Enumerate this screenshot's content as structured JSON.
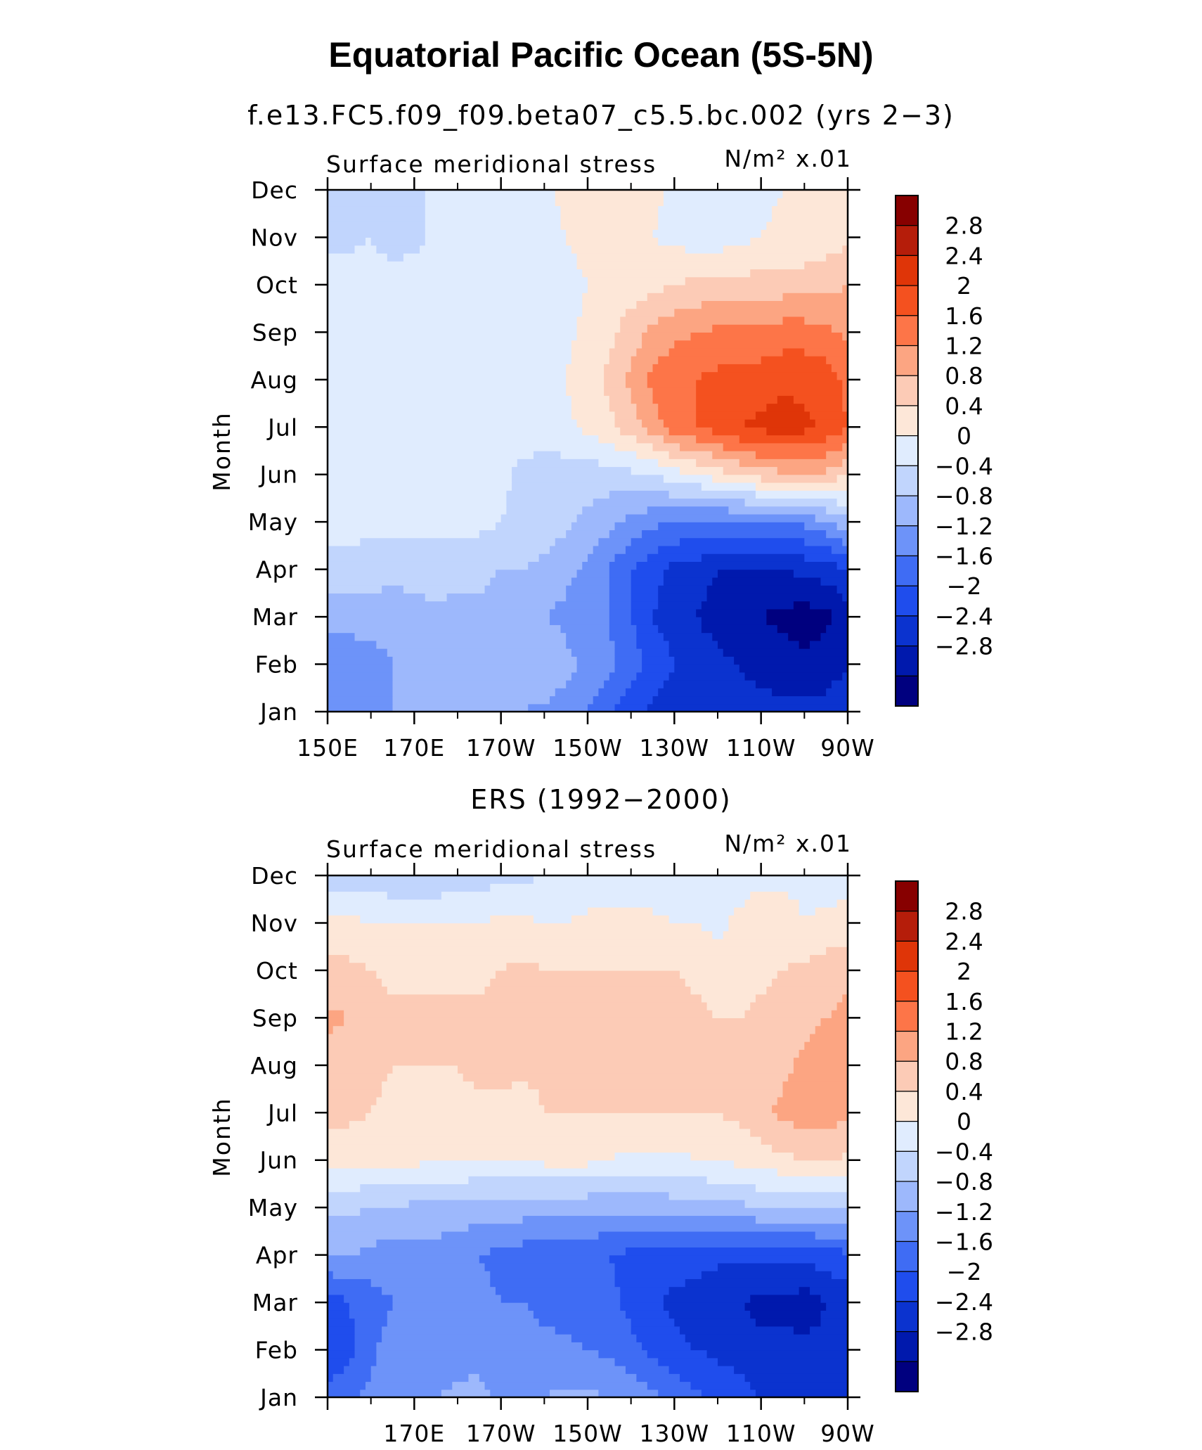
{
  "figure_title": "Equatorial Pacific Ocean (5S-5N)",
  "chart_data": [
    {
      "type": "heatmap",
      "title": "f.e13.FC5.f09_f09.beta07_c5.5.bc.002 (yrs 2−3)",
      "left_string": "Surface meridional stress",
      "units": "N/m² x.01",
      "xlabel": "",
      "ylabel": "Month",
      "x_tick_labels": [
        "150E",
        "170E",
        "170W",
        "150W",
        "130W",
        "110W",
        "90W"
      ],
      "y_tick_labels": [
        "Jan",
        "Feb",
        "Mar",
        "Apr",
        "May",
        "Jun",
        "Jul",
        "Aug",
        "Sep",
        "Oct",
        "Nov",
        "Dec"
      ],
      "x": [
        150,
        155,
        160,
        165,
        170,
        175,
        180,
        185,
        190,
        195,
        200,
        205,
        210,
        215,
        220,
        225,
        230,
        235,
        240,
        245,
        250,
        255,
        260,
        265,
        270
      ],
      "xlim": [
        150,
        270
      ],
      "levels": [
        -2.8,
        -2.4,
        -2.0,
        -1.6,
        -1.2,
        -0.8,
        -0.4,
        0,
        0.4,
        0.8,
        1.2,
        1.6,
        2.0,
        2.4,
        2.8
      ],
      "level_labels": [
        "2.8",
        "2.4",
        "2",
        "1.6",
        "1.2",
        "0.8",
        "0.4",
        "0",
        "−0.4",
        "−0.8",
        "−1.2",
        "−1.6",
        "−2",
        "−2.4",
        "−2.8"
      ],
      "z": [
        [
          -1.0,
          -1.0,
          -0.9,
          -0.8,
          -0.6,
          -0.6,
          -0.6,
          -0.7,
          -0.8,
          -0.8,
          -0.9,
          -1.0,
          -1.2,
          -1.5,
          -1.9,
          -2.1,
          -2.2,
          -2.3,
          -2.3,
          -2.3,
          -2.3,
          -2.3,
          -2.3,
          -2.3,
          -2.1
        ],
        [
          -1.1,
          -1.1,
          -1.0,
          -0.8,
          -0.7,
          -0.7,
          -0.7,
          -0.6,
          -0.7,
          -0.6,
          -0.4,
          -0.7,
          -0.9,
          -1.1,
          -1.4,
          -1.7,
          -2.0,
          -2.1,
          -2.3,
          -2.4,
          -2.5,
          -2.6,
          -2.7,
          -2.6,
          -2.4
        ],
        [
          -0.6,
          -0.6,
          -0.6,
          -0.6,
          -0.6,
          -0.5,
          -0.5,
          -0.5,
          -0.6,
          -0.7,
          -0.8,
          -0.9,
          -1.0,
          -1.2,
          -1.6,
          -2.0,
          -2.2,
          -2.4,
          -2.6,
          -2.7,
          -2.8,
          -2.9,
          -3.0,
          -2.9,
          -2.6
        ],
        [
          -0.2,
          -0.2,
          -0.2,
          -0.3,
          -0.2,
          -0.2,
          -0.3,
          -0.3,
          -0.4,
          -0.4,
          -0.5,
          -0.7,
          -0.9,
          -1.2,
          -1.6,
          -1.9,
          -2.1,
          -2.2,
          -2.4,
          -2.4,
          -2.4,
          -2.4,
          -2.3,
          -2.2,
          -2.0
        ],
        [
          0.2,
          0.2,
          0.1,
          0.1,
          0.1,
          0.1,
          0.1,
          0.1,
          0.0,
          -0.1,
          -0.2,
          -0.3,
          -0.5,
          -0.7,
          -0.9,
          -1.1,
          -1.2,
          -1.3,
          -1.3,
          -1.3,
          -1.3,
          -1.2,
          -1.1,
          -0.9,
          -0.5
        ],
        [
          0.2,
          0.2,
          0.2,
          0.2,
          0.2,
          0.2,
          0.2,
          0.2,
          0.1,
          -0.1,
          -0.2,
          -0.2,
          -0.2,
          -0.2,
          -0.1,
          0.0,
          0.2,
          0.4,
          0.6,
          0.8,
          1.0,
          1.1,
          1.2,
          1.1,
          0.8
        ],
        [
          0.4,
          0.3,
          0.2,
          0.2,
          0.2,
          0.2,
          0.2,
          0.2,
          0.2,
          0.2,
          0.2,
          0.3,
          0.5,
          0.7,
          1.0,
          1.4,
          1.8,
          2.0,
          2.2,
          2.4,
          2.5,
          2.6,
          2.5,
          2.3,
          2.0
        ],
        [
          0.4,
          0.3,
          0.2,
          0.2,
          0.2,
          0.2,
          0.2,
          0.2,
          0.2,
          0.2,
          0.2,
          0.4,
          0.6,
          0.9,
          1.3,
          1.7,
          1.9,
          2.0,
          2.1,
          2.1,
          2.2,
          2.3,
          2.3,
          2.2,
          1.9
        ],
        [
          0.4,
          0.3,
          0.2,
          0.2,
          0.2,
          0.2,
          0.2,
          0.2,
          0.2,
          0.2,
          0.2,
          0.3,
          0.5,
          0.7,
          1.0,
          1.3,
          1.5,
          1.6,
          1.7,
          1.7,
          1.7,
          1.8,
          1.8,
          1.7,
          1.5
        ],
        [
          0.2,
          0.2,
          0.2,
          0.2,
          0.2,
          0.2,
          0.2,
          0.2,
          0.2,
          0.2,
          0.2,
          0.3,
          0.4,
          0.5,
          0.6,
          0.7,
          0.8,
          0.9,
          0.9,
          0.9,
          1.0,
          1.0,
          1.0,
          1.1,
          1.2
        ],
        [
          -0.1,
          -0.1,
          0.0,
          -0.2,
          -0.1,
          0.1,
          0.2,
          0.2,
          0.2,
          0.2,
          0.3,
          0.4,
          0.5,
          0.5,
          0.5,
          0.4,
          0.3,
          0.2,
          0.2,
          0.3,
          0.4,
          0.5,
          0.5,
          0.6,
          0.7
        ],
        [
          -0.3,
          -0.2,
          -0.2,
          -0.1,
          -0.1,
          0.1,
          0.2,
          0.2,
          0.2,
          0.2,
          0.3,
          0.5,
          0.6,
          0.6,
          0.6,
          0.5,
          0.3,
          0.2,
          0.2,
          0.2,
          0.3,
          0.4,
          0.5,
          0.6,
          0.8
        ]
      ]
    },
    {
      "type": "heatmap",
      "title": "ERS (1992−2000)",
      "left_string": "Surface meridional stress",
      "units": "N/m² x.01",
      "xlabel": "",
      "ylabel": "Month",
      "x_tick_labels": [
        "",
        "170E",
        "170W",
        "150W",
        "130W",
        "110W",
        "90W"
      ],
      "y_tick_labels": [
        "Jan",
        "Feb",
        "Mar",
        "Apr",
        "May",
        "Jun",
        "Jul",
        "Aug",
        "Sep",
        "Oct",
        "Nov",
        "Dec"
      ],
      "x": [
        150,
        155,
        160,
        165,
        170,
        175,
        180,
        185,
        190,
        195,
        200,
        205,
        210,
        215,
        220,
        225,
        230,
        235,
        240,
        245,
        250,
        255,
        260,
        265,
        270
      ],
      "xlim": [
        150,
        270
      ],
      "levels": [
        -2.8,
        -2.4,
        -2.0,
        -1.6,
        -1.2,
        -0.8,
        -0.4,
        0,
        0.4,
        0.8,
        1.2,
        1.6,
        2.0,
        2.4,
        2.8
      ],
      "level_labels": [
        "2.8",
        "2.4",
        "2",
        "1.6",
        "1.2",
        "0.8",
        "0.4",
        "0",
        "−0.4",
        "−0.8",
        "−1.2",
        "−1.6",
        "−2",
        "−2.4",
        "−2.8"
      ],
      "z": [
        [
          -1.5,
          -1.3,
          -1.1,
          -0.9,
          -0.8,
          -0.8,
          -0.7,
          -0.7,
          -0.9,
          -0.8,
          -0.8,
          -0.7,
          -0.7,
          -0.8,
          -0.9,
          -1.1,
          -1.3,
          -1.5,
          -1.7,
          -1.8,
          -2.0,
          -2.0,
          -2.1,
          -2.1,
          -2.0
        ],
        [
          -1.9,
          -1.7,
          -1.3,
          -1.0,
          -1.0,
          -1.1,
          -1.0,
          -0.9,
          -1.0,
          -1.0,
          -1.1,
          -1.1,
          -1.2,
          -1.3,
          -1.5,
          -1.7,
          -1.9,
          -2.0,
          -2.1,
          -2.2,
          -2.3,
          -2.3,
          -2.3,
          -2.3,
          -2.2
        ],
        [
          -1.8,
          -1.6,
          -1.4,
          -1.2,
          -1.1,
          -1.1,
          -1.1,
          -1.1,
          -1.2,
          -1.2,
          -1.3,
          -1.4,
          -1.4,
          -1.5,
          -1.7,
          -1.9,
          -2.1,
          -2.2,
          -2.3,
          -2.4,
          -2.5,
          -2.5,
          -2.6,
          -2.4,
          -2.2
        ],
        [
          -0.8,
          -0.8,
          -0.9,
          -1.0,
          -1.0,
          -1.0,
          -1.1,
          -1.2,
          -1.3,
          -1.4,
          -1.5,
          -1.5,
          -1.5,
          -1.6,
          -1.7,
          -1.8,
          -1.8,
          -1.8,
          -1.9,
          -1.9,
          -1.9,
          -1.9,
          -1.9,
          -1.8,
          -1.7
        ],
        [
          -0.3,
          -0.3,
          -0.4,
          -0.4,
          -0.5,
          -0.5,
          -0.5,
          -0.6,
          -0.6,
          -0.6,
          -0.7,
          -0.7,
          -0.7,
          -0.7,
          -0.7,
          -0.7,
          -0.6,
          -0.6,
          -0.5,
          -0.5,
          -0.4,
          -0.4,
          -0.3,
          -0.3,
          -0.3
        ],
        [
          0.5,
          0.5,
          0.5,
          0.5,
          0.5,
          0.4,
          0.4,
          0.4,
          0.4,
          0.4,
          0.5,
          0.5,
          0.5,
          0.4,
          0.3,
          0.3,
          0.3,
          0.4,
          0.4,
          0.5,
          0.6,
          0.7,
          0.8,
          0.9,
          0.7
        ],
        [
          0.9,
          0.9,
          0.8,
          0.7,
          0.7,
          0.7,
          0.7,
          0.7,
          0.7,
          0.6,
          0.8,
          0.8,
          0.8,
          0.8,
          0.8,
          0.8,
          0.8,
          0.8,
          0.8,
          0.9,
          1.1,
          1.3,
          1.4,
          1.4,
          1.3
        ],
        [
          1.0,
          1.0,
          0.9,
          0.8,
          0.8,
          0.8,
          0.8,
          0.9,
          0.9,
          0.9,
          0.9,
          0.9,
          0.9,
          1.0,
          1.0,
          1.0,
          1.0,
          1.0,
          1.0,
          1.0,
          1.0,
          1.1,
          1.3,
          1.4,
          1.3
        ],
        [
          1.3,
          1.2,
          1.0,
          0.9,
          0.9,
          0.9,
          0.9,
          0.9,
          1.0,
          1.1,
          1.0,
          1.0,
          1.0,
          1.0,
          1.0,
          1.0,
          1.0,
          0.9,
          0.8,
          0.8,
          0.9,
          1.0,
          1.1,
          1.2,
          1.3
        ],
        [
          0.9,
          0.9,
          0.8,
          0.7,
          0.7,
          0.7,
          0.7,
          0.7,
          0.8,
          0.9,
          0.8,
          0.8,
          0.8,
          0.8,
          0.8,
          0.8,
          0.8,
          0.7,
          0.6,
          0.6,
          0.7,
          0.8,
          0.9,
          1.0,
          1.1
        ],
        [
          0.5,
          0.5,
          0.4,
          0.4,
          0.4,
          0.4,
          0.4,
          0.4,
          0.5,
          0.5,
          0.4,
          0.4,
          0.5,
          0.5,
          0.5,
          0.5,
          0.4,
          0.4,
          0.3,
          0.5,
          0.7,
          0.6,
          0.4,
          0.5,
          0.6
        ],
        [
          -0.2,
          -0.2,
          -0.2,
          -0.3,
          -0.3,
          -0.3,
          -0.2,
          -0.2,
          -0.1,
          -0.1,
          0.0,
          0.1,
          0.1,
          0.1,
          0.1,
          0.1,
          0.2,
          0.2,
          0.2,
          0.2,
          0.3,
          0.3,
          0.3,
          0.2,
          0.2
        ]
      ]
    }
  ],
  "colors": {
    "fills": [
      "#00007f",
      "#0019ad",
      "#0b33cf",
      "#1f4ded",
      "#3f6cf4",
      "#6d93f9",
      "#9db8fc",
      "#c1d5fd",
      "#e0ecfe",
      "#fde7d8",
      "#fccbb6",
      "#fca582",
      "#fd7548",
      "#f4511f",
      "#df3508",
      "#b51d0a",
      "#870000"
    ]
  }
}
